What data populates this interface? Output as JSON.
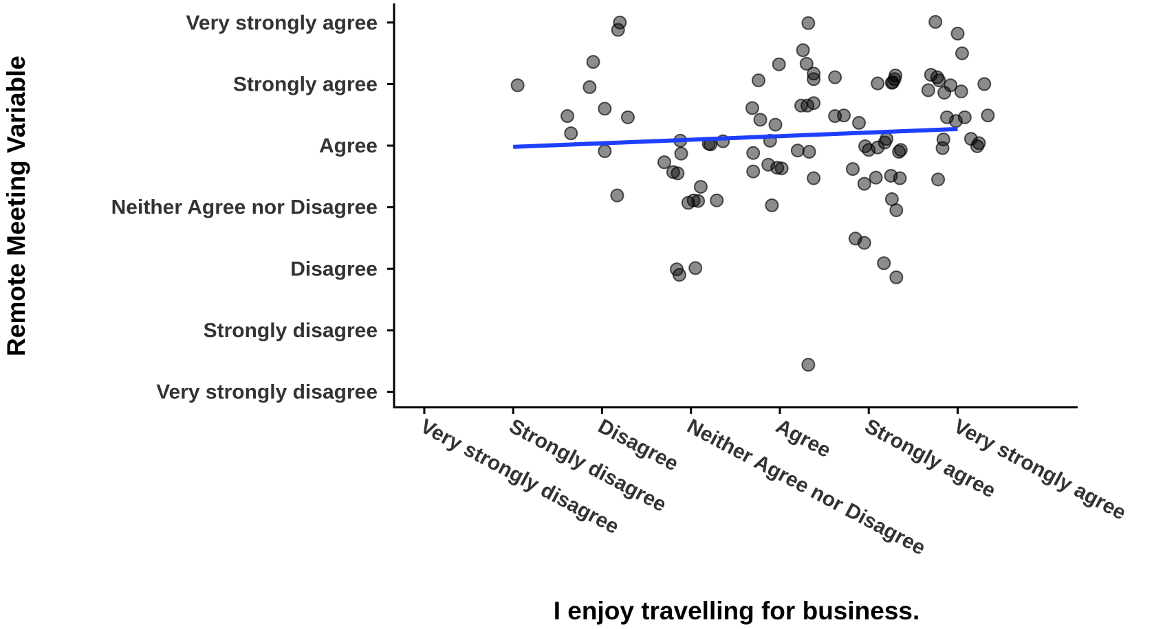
{
  "chart_data": {
    "type": "scatter",
    "x_label": "I enjoy travelling for business.",
    "y_label": "Remote Meeting Variable",
    "xlim": [
      0.66,
      8.35
    ],
    "ylim": [
      0.75,
      7.31
    ],
    "xticks": [
      {
        "value": 1,
        "label": "Very strongly disagree"
      },
      {
        "value": 2,
        "label": "Strongly disagree"
      },
      {
        "value": 3,
        "label": "Disagree"
      },
      {
        "value": 4,
        "label": "Neither Agree nor Disagree"
      },
      {
        "value": 5,
        "label": "Agree"
      },
      {
        "value": 6,
        "label": "Strongly agree"
      },
      {
        "value": 7,
        "label": "Very strongly agree"
      }
    ],
    "yticks": [
      {
        "value": 1,
        "label": "Very strongly disagree"
      },
      {
        "value": 2,
        "label": "Strongly disagree"
      },
      {
        "value": 3,
        "label": "Disagree"
      },
      {
        "value": 4,
        "label": "Neither Agree nor Disagree"
      },
      {
        "value": 5,
        "label": "Agree"
      },
      {
        "value": 6,
        "label": "Strongly agree"
      },
      {
        "value": 7,
        "label": "Very strongly agree"
      }
    ],
    "grid": false,
    "series": [
      {
        "color": "#000000",
        "alpha": 0.45,
        "x": [
          2.05,
          3.2,
          3.18,
          2.9,
          2.86,
          3.03,
          2.61,
          3.29,
          2.65,
          3.03,
          3.17,
          3.7,
          3.8,
          3.85,
          3.88,
          3.89,
          4.2,
          4.22,
          4.36,
          4.11,
          3.97,
          4.08,
          4.03,
          4.29,
          3.84,
          3.87,
          4.05,
          5.32,
          5.26,
          5.3,
          4.99,
          4.76,
          5.38,
          5.38,
          5.62,
          4.69,
          4.78,
          4.95,
          5.24,
          5.31,
          5.38,
          5.62,
          5.72,
          4.89,
          5.2,
          5.33,
          4.7,
          4.87,
          4.97,
          5.02,
          4.7,
          5.38,
          4.91,
          5.32,
          6.75,
          7.0,
          7.05,
          6.1,
          6.26,
          6.29,
          6.3,
          6.27,
          5.89,
          5.96,
          6.0,
          6.1,
          6.18,
          6.2,
          6.34,
          6.36,
          5.82,
          5.95,
          6.08,
          6.25,
          6.35,
          6.26,
          6.31,
          5.85,
          5.95,
          6.17,
          6.31,
          6.7,
          6.77,
          6.79,
          6.67,
          6.85,
          6.92,
          7.04,
          7.3,
          6.88,
          7.08,
          7.34,
          6.98,
          6.84,
          7.15,
          7.24,
          7.22,
          6.83,
          6.78
        ],
        "values": [
          5.98,
          7.0,
          6.88,
          6.36,
          5.95,
          5.6,
          5.48,
          5.46,
          5.2,
          4.91,
          4.19,
          4.73,
          4.57,
          4.55,
          5.08,
          4.87,
          5.03,
          5.02,
          5.07,
          4.33,
          4.07,
          4.1,
          4.11,
          4.11,
          2.99,
          2.9,
          3.01,
          6.99,
          6.55,
          6.33,
          6.32,
          6.06,
          6.17,
          6.08,
          6.11,
          5.61,
          5.42,
          5.34,
          5.65,
          5.65,
          5.69,
          5.48,
          5.49,
          5.08,
          4.92,
          4.9,
          4.88,
          4.69,
          4.64,
          4.63,
          4.58,
          4.47,
          4.03,
          1.44,
          7.01,
          6.82,
          6.5,
          6.01,
          6.02,
          6.08,
          6.14,
          6.03,
          5.37,
          4.99,
          4.93,
          4.97,
          5.05,
          5.11,
          4.9,
          4.93,
          4.62,
          4.38,
          4.48,
          4.51,
          4.47,
          4.13,
          3.95,
          3.49,
          3.42,
          3.09,
          2.86,
          6.15,
          6.11,
          6.06,
          5.9,
          5.86,
          5.98,
          5.88,
          6.0,
          5.46,
          5.46,
          5.49,
          5.4,
          5.1,
          5.11,
          5.04,
          4.99,
          4.96,
          4.45
        ]
      }
    ],
    "trend": {
      "x": [
        2,
        7
      ],
      "values": [
        4.98,
        5.27
      ],
      "color": "#1f3fff"
    }
  }
}
